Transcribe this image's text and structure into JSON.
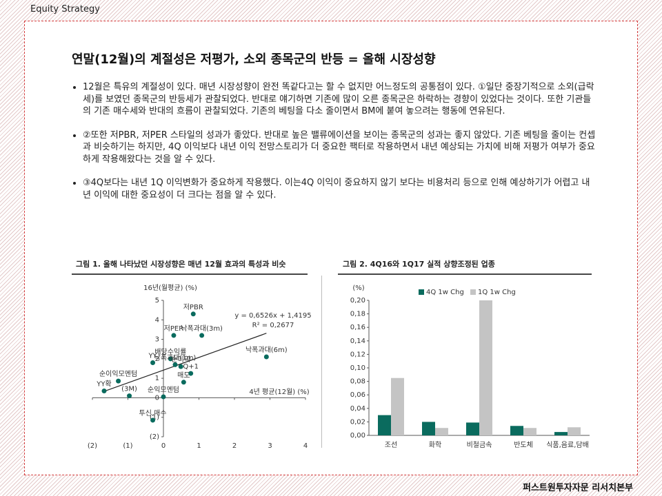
{
  "header": "Equity Strategy",
  "title": "연말(12월)의 계절성은 저평가, 소외 종목군의 반등 =  올해 시장성향",
  "bullets": [
    "12월은 특유의 계절성이 있다. 매년 시장성향이 완전 똑같다고는 할 수 없지만 어느정도의 공통점이 있다. ①일단 중장기적으로 소외(급락세)를 보였던 종목군의 반등세가 관찰되었다. 반대로 얘기하면 기존에 많이 오른 종목군은 하락하는 경향이 있었다는 것이다. 또한 기관들의 기존 매수세와 반대의 흐름이 관찰되었다. 기존의 베팅을 다소 줄이면서 BM에 붙여 놓으려는 행동에 연유된다.",
    "②또한 저PBR, 저PER 스타일의 성과가 좋았다. 반대로 높은 밸류에이션을 보이는 종목군의 성과는 좋지 않았다. 기존 베팅을 줄이는 컨셉과 비슷하기는 하지만, 4Q 이익보다 내년 이익 전망스토리가 더 중요한 팩터로 작용하면서 내년 예상되는 가치에 비해 저평가 여부가 중요하게 작용해왔다는 것을 알 수 있다.",
    "③4Q보다는 내년 1Q 이익변화가 중요하게 작용했다. 이는4Q 이익이 중요하지 않기 보다는 비용처리 등으로 인해 예상하기가 어렵고 내년 이익에 대한 중요성이 더 크다는 점을 알 수 있다."
  ],
  "chart_data": [
    {
      "type": "scatter",
      "title": "그림 1. 올해 나타났던 시장성향은 매년 12월 효과의 특성과 비슷",
      "y_label": "16년(월평균) (%)",
      "x_label": "4년 평균(12월) (%)",
      "color": "#0a6b5e",
      "point_labels": [
        "저PBR",
        "저PER",
        "낙폭과대(3m)",
        "낙폭과대(6m)",
        "배당수익률",
        "YY",
        "낙폭과대(1m)",
        "순이익",
        "Q+1",
        "매도",
        "순이익모멘텀",
        "(3M)",
        "YY확",
        "순익모멘텀",
        "투신,매수"
      ],
      "x": [
        0.84,
        0.29,
        1.08,
        2.9,
        0.2,
        -0.3,
        0.33,
        0.49,
        0.77,
        0.57,
        -1.27,
        -0.96,
        -1.67,
        0.0,
        -0.3
      ],
      "values": [
        4.3,
        3.2,
        3.2,
        2.1,
        2.0,
        1.8,
        1.7,
        1.6,
        1.25,
        0.8,
        0.86,
        0.1,
        0.35,
        0.05,
        -1.15
      ],
      "trendline": {
        "slope": 0.6526,
        "intercept": 1.4195,
        "label": "y = 0,6526x + 1,4195"
      },
      "r2": {
        "value": 0.2677,
        "label": "R² = 0,2677"
      },
      "xlim": [
        -2,
        4
      ],
      "xticks": [
        {
          "value": -2,
          "label": "(2)"
        },
        {
          "value": -1,
          "label": "(1)"
        },
        0,
        1,
        2,
        3,
        4
      ],
      "ylim": [
        -2,
        5
      ],
      "yticks": [
        {
          "value": -2,
          "label": "(2)"
        },
        {
          "value": -1,
          "label": "(1)"
        },
        0,
        1,
        2,
        3,
        4,
        5
      ]
    },
    {
      "type": "bar",
      "title": "그림 2. 4Q16와 1Q17 실적 상향조정된 업종",
      "y_label": "(%)",
      "categories": [
        "조선",
        "화학",
        "비철금속",
        "반도체",
        "식품,음료,담배"
      ],
      "series": [
        {
          "name": "4Q 1w Chg",
          "color": "#0a6b5e",
          "values": [
            0.03,
            0.02,
            0.019,
            0.014,
            0.005
          ]
        },
        {
          "name": "1Q 1w Chg",
          "color": "#c4c4c4",
          "values": [
            0.085,
            0.011,
            0.2,
            0.011,
            0.012
          ]
        }
      ],
      "ylim": [
        0,
        0.2
      ],
      "yticks": [
        {
          "value": 0,
          "label": "0,00"
        },
        {
          "value": 0.02,
          "label": "0,02"
        },
        {
          "value": 0.04,
          "label": "0,04"
        },
        {
          "value": 0.06,
          "label": "0,06"
        },
        {
          "value": 0.08,
          "label": "0,08"
        },
        {
          "value": 0.1,
          "label": "0,10"
        },
        {
          "value": 0.12,
          "label": "0,12"
        },
        {
          "value": 0.14,
          "label": "0,14"
        },
        {
          "value": 0.16,
          "label": "0,16"
        },
        {
          "value": 0.18,
          "label": "0,18"
        },
        {
          "value": 0.2,
          "label": "0,20"
        }
      ]
    }
  ],
  "footer": "퍼스트원투자자문 리서치본부"
}
